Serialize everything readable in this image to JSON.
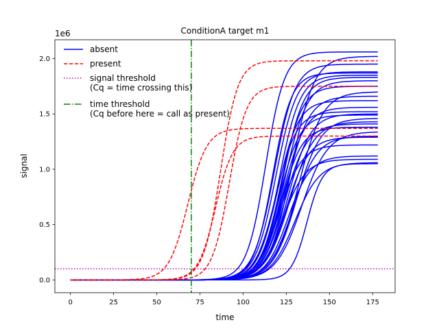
{
  "chart_data": {
    "type": "line",
    "title": "ConditionA target m1",
    "xlabel": "time",
    "ylabel": "signal",
    "y_multiplier_label": "1e6",
    "xlim": [
      -9,
      188
    ],
    "ylim": [
      -0.115,
      2.17
    ],
    "y_scale_factor": 1000000,
    "x_ticks": [
      0,
      25,
      50,
      75,
      100,
      125,
      150,
      175
    ],
    "y_ticks": [
      0.0,
      0.5,
      1.0,
      1.5,
      2.0
    ],
    "y_tick_labels": [
      "0.0",
      "0.5",
      "1.0",
      "1.5",
      "2.0"
    ],
    "x_max_sample": 178,
    "grid": false,
    "legend_position": "top-left",
    "legend": [
      {
        "label": "absent",
        "color": "#0000ff",
        "style": "solid"
      },
      {
        "label": "present",
        "color": "#ff0000",
        "style": "dashed"
      },
      {
        "label": "signal threshold\n(Cq = time crossing this)",
        "color": "#bf00bf",
        "style": "dotted"
      },
      {
        "label": "time threshold\n(Cq before here = call as present)",
        "color": "#008000",
        "style": "dashdot"
      }
    ],
    "signal_threshold": 100000,
    "time_threshold": 70,
    "series": [
      {
        "group": "absent",
        "params": [
          [
            2.06,
            113,
            5.5
          ],
          [
            1.83,
            123,
            6
          ],
          [
            1.88,
            119,
            6
          ],
          [
            1.85,
            121,
            6
          ],
          [
            1.8,
            124,
            6.5
          ],
          [
            1.75,
            122,
            6
          ],
          [
            1.95,
            118,
            6
          ],
          [
            1.87,
            117,
            5.5
          ],
          [
            1.66,
            125,
            6.5
          ],
          [
            1.62,
            120,
            6
          ],
          [
            1.56,
            123,
            6.5
          ],
          [
            1.52,
            119,
            6
          ],
          [
            1.5,
            126,
            6.5
          ],
          [
            1.49,
            121,
            6
          ],
          [
            1.43,
            127,
            7
          ],
          [
            1.41,
            124,
            6.5
          ],
          [
            1.38,
            122,
            6
          ],
          [
            1.3,
            129,
            7
          ],
          [
            1.29,
            125,
            6.5
          ],
          [
            1.22,
            121,
            6.5
          ],
          [
            1.12,
            126,
            6.5
          ],
          [
            1.09,
            123,
            6.5
          ],
          [
            1.06,
            130,
            7
          ],
          [
            1.05,
            137,
            4.5
          ],
          [
            2.02,
            128,
            6.5
          ],
          [
            1.7,
            132,
            7
          ],
          [
            1.46,
            131,
            7
          ],
          [
            1.34,
            134,
            7.5
          ]
        ]
      },
      {
        "group": "present",
        "params": [
          [
            1.98,
            87,
            5
          ],
          [
            1.75,
            92,
            5
          ],
          [
            1.37,
            68,
            5.5
          ],
          [
            1.3,
            84,
            5
          ]
        ]
      }
    ]
  }
}
